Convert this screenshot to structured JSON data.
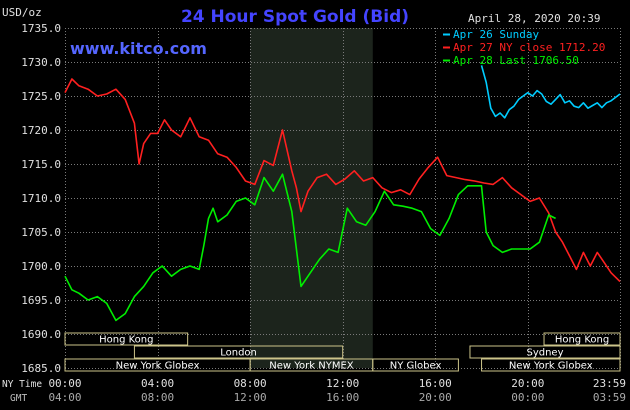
{
  "chart_data": {
    "type": "line",
    "title": "24 Hour Spot Gold (Bid)",
    "watermark": "www.kitco.com",
    "date_stamp": "April 28, 2020 20:39",
    "ylabel": "USD/oz",
    "ylim": [
      1685,
      1735
    ],
    "y_ticks": [
      "1735.0",
      "1730.0",
      "1725.0",
      "1720.0",
      "1715.0",
      "1710.0",
      "1705.0",
      "1700.0",
      "1695.0",
      "1690.0",
      "1685.0"
    ],
    "x_row1_label": "NY Time",
    "x_row2_label": "GMT",
    "x_ticks_ny": [
      "00:00",
      "04:00",
      "08:00",
      "12:00",
      "16:00",
      "20:00",
      "23:59"
    ],
    "x_ticks_gmt": [
      "04:00",
      "08:00",
      "12:00",
      "16:00",
      "20:00",
      "00:00",
      "03:59"
    ],
    "xlim_hours": [
      0,
      23.983
    ],
    "highlight_band_hours": [
      8.0,
      13.3
    ],
    "grid": true,
    "colors": {
      "background": "#000000",
      "grid": "#7a7a7a",
      "band": "#1c241c",
      "title": "#4444ff",
      "watermark": "#5566ff",
      "text": "#e0e0e0",
      "session_box": "#ccc48a",
      "session_text": "#ffffff"
    },
    "legend": {
      "placement": "top-right",
      "entries": [
        {
          "label": "Apr 26 Sunday",
          "color": "#00ccff"
        },
        {
          "label": "Apr 27 NY close 1712.20",
          "color": "#ff2020"
        },
        {
          "label": "Apr 28 Last 1706.50",
          "color": "#00ee00"
        }
      ]
    },
    "series": [
      {
        "name": "Apr 26 Sunday",
        "color": "#00ccff",
        "x": [
          18.0,
          18.2,
          18.4,
          18.6,
          18.8,
          19.0,
          19.2,
          19.4,
          19.6,
          19.8,
          20.0,
          20.2,
          20.4,
          20.6,
          20.8,
          21.0,
          21.2,
          21.4,
          21.6,
          21.8,
          22.0,
          22.2,
          22.4,
          22.6,
          22.8,
          23.0,
          23.2,
          23.4,
          23.6,
          23.983
        ],
        "y": [
          1729.5,
          1727.0,
          1723.2,
          1722.0,
          1722.5,
          1721.8,
          1723.0,
          1723.5,
          1724.5,
          1725.0,
          1725.5,
          1725.0,
          1725.8,
          1725.3,
          1724.2,
          1723.8,
          1724.5,
          1725.2,
          1724.0,
          1724.3,
          1723.5,
          1723.3,
          1724.0,
          1723.2,
          1723.6,
          1724.0,
          1723.3,
          1724.0,
          1724.3,
          1725.3
        ]
      },
      {
        "name": "Apr 27 NY close 1712.20",
        "color": "#ff2020",
        "x": [
          0.0,
          0.3,
          0.6,
          1.0,
          1.4,
          1.8,
          2.2,
          2.6,
          3.0,
          3.2,
          3.4,
          3.7,
          4.0,
          4.3,
          4.6,
          5.0,
          5.4,
          5.8,
          6.2,
          6.6,
          7.0,
          7.4,
          7.8,
          8.2,
          8.6,
          9.0,
          9.4,
          9.8,
          10.0,
          10.2,
          10.5,
          10.9,
          11.3,
          11.7,
          12.1,
          12.5,
          12.9,
          13.3,
          13.7,
          14.1,
          14.5,
          14.9,
          15.3,
          15.7,
          16.1,
          16.5,
          16.9,
          17.3,
          17.7,
          18.1,
          18.5,
          18.9,
          19.3,
          19.7,
          20.1,
          20.5,
          20.9,
          21.2,
          21.5,
          21.8,
          22.1,
          22.4,
          22.7,
          23.0,
          23.3,
          23.6,
          23.983
        ],
        "y": [
          1725.5,
          1727.5,
          1726.5,
          1726.0,
          1725.0,
          1725.3,
          1726.0,
          1724.5,
          1721.0,
          1715.0,
          1718.0,
          1719.5,
          1719.5,
          1721.5,
          1720.0,
          1719.0,
          1721.8,
          1719.0,
          1718.5,
          1716.5,
          1716.0,
          1714.5,
          1712.5,
          1712.0,
          1715.5,
          1714.8,
          1720.0,
          1714.0,
          1711.5,
          1708.0,
          1711.0,
          1713.0,
          1713.5,
          1712.0,
          1712.8,
          1714.0,
          1712.5,
          1713.0,
          1711.5,
          1710.8,
          1711.2,
          1710.5,
          1712.8,
          1714.5,
          1716.0,
          1713.3,
          1713.0,
          1712.7,
          1712.5,
          1712.2,
          1712.0,
          1713.0,
          1711.5,
          1710.5,
          1709.5,
          1710.0,
          1707.8,
          1705.0,
          1703.5,
          1701.5,
          1699.5,
          1702.0,
          1700.0,
          1702.0,
          1700.5,
          1699.0,
          1697.7
        ]
      },
      {
        "name": "Apr 28 Last 1706.50",
        "color": "#00ee00",
        "x": [
          0.0,
          0.3,
          0.6,
          1.0,
          1.4,
          1.8,
          2.2,
          2.6,
          3.0,
          3.4,
          3.8,
          4.2,
          4.6,
          5.0,
          5.4,
          5.8,
          6.0,
          6.2,
          6.4,
          6.6,
          7.0,
          7.4,
          7.8,
          8.2,
          8.6,
          9.0,
          9.4,
          9.8,
          10.0,
          10.2,
          10.6,
          11.0,
          11.4,
          11.8,
          12.2,
          12.6,
          13.0,
          13.4,
          13.8,
          14.2,
          14.6,
          15.0,
          15.4,
          15.8,
          16.2,
          16.6,
          17.0,
          17.4,
          17.8,
          18.0,
          18.2,
          18.5,
          18.9,
          19.3,
          19.7,
          20.1,
          20.5,
          20.9,
          21.2
        ],
        "y": [
          1698.5,
          1696.5,
          1696.0,
          1695.0,
          1695.5,
          1694.5,
          1692.0,
          1693.0,
          1695.5,
          1697.0,
          1699.0,
          1700.0,
          1698.5,
          1699.5,
          1700.0,
          1699.5,
          1703.0,
          1707.0,
          1708.5,
          1706.5,
          1707.5,
          1709.5,
          1710.0,
          1709.0,
          1713.0,
          1711.0,
          1713.5,
          1708.0,
          1702.5,
          1697.0,
          1699.0,
          1701.0,
          1702.5,
          1702.0,
          1708.5,
          1706.5,
          1706.0,
          1708.0,
          1711.0,
          1709.0,
          1708.8,
          1708.5,
          1708.0,
          1705.5,
          1704.5,
          1707.0,
          1710.5,
          1711.8,
          1711.8,
          1711.8,
          1705.0,
          1703.0,
          1702.0,
          1702.5,
          1702.5,
          1702.5,
          1703.5,
          1707.5,
          1707.0
        ]
      }
    ],
    "sessions": [
      {
        "label": "Hong Kong",
        "row": 1,
        "start_hour": 0.0,
        "end_hour": 5.3
      },
      {
        "label": "Hong Kong",
        "row": 1,
        "start_hour": 20.7,
        "end_hour": 23.983
      },
      {
        "label": "London",
        "row": 2,
        "start_hour": 3.0,
        "end_hour": 12.0
      },
      {
        "label": "Sydney",
        "row": 2,
        "start_hour": 17.5,
        "end_hour": 23.983
      },
      {
        "label": "New York Globex",
        "row": 3,
        "start_hour": 0.0,
        "end_hour": 8.0
      },
      {
        "label": "New York NYMEX",
        "row": 3,
        "start_hour": 8.0,
        "end_hour": 13.3
      },
      {
        "label": "NY Globex",
        "row": 3,
        "start_hour": 13.3,
        "end_hour": 17.0
      },
      {
        "label": "New York Globex",
        "row": 3,
        "start_hour": 18.0,
        "end_hour": 23.983
      }
    ]
  }
}
